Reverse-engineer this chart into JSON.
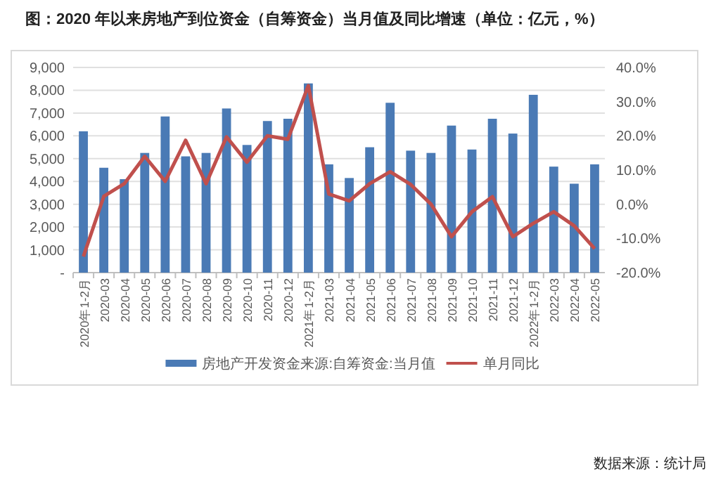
{
  "chart_data": {
    "type": "bar",
    "title": "图：2020 年以来房地产到位资金（自筹资金）当月值及同比增速（单位：亿元，%）",
    "categories": [
      "2020年1-2月",
      "2020-03",
      "2020-04",
      "2020-05",
      "2020-06",
      "2020-07",
      "2020-08",
      "2020-09",
      "2020-10",
      "2020-11",
      "2020-12",
      "2021年1-2月",
      "2021-03",
      "2021-04",
      "2021-05",
      "2021-06",
      "2021-07",
      "2021-08",
      "2021-09",
      "2021-10",
      "2021-11",
      "2021-12",
      "2022年1-2月",
      "2022-03",
      "2022-04",
      "2022-05"
    ],
    "series": [
      {
        "name": "房地产开发资金来源:自筹资金:当月值",
        "color": "#4a7ab5",
        "values": [
          6200,
          4600,
          4100,
          5250,
          6850,
          5100,
          5250,
          7200,
          5600,
          6650,
          6750,
          8300,
          4750,
          4150,
          5500,
          7450,
          5350,
          5250,
          6450,
          5400,
          6750,
          6100,
          7800,
          4650,
          3900,
          4750
        ]
      },
      {
        "name": "单月同比",
        "type": "line",
        "axis": "y2",
        "color": "#c0504d",
        "values": [
          -15.3,
          2.3,
          6,
          14,
          6.7,
          18.7,
          6,
          19.7,
          12.3,
          20,
          19,
          34.7,
          3,
          1,
          6,
          9.5,
          5.8,
          0,
          -9.5,
          -2.2,
          2.2,
          -9.5,
          -5.6,
          -2.2,
          -6.3,
          -13
        ]
      }
    ],
    "ylim": [
      0,
      9000
    ],
    "yticks": [
      {
        "value": 0,
        "label": "-"
      },
      {
        "value": 1000,
        "label": "1,000"
      },
      {
        "value": 2000,
        "label": "2,000"
      },
      {
        "value": 3000,
        "label": "3,000"
      },
      {
        "value": 4000,
        "label": "4,000"
      },
      {
        "value": 5000,
        "label": "5,000"
      },
      {
        "value": 6000,
        "label": "6,000"
      },
      {
        "value": 7000,
        "label": "7,000"
      },
      {
        "value": 8000,
        "label": "8,000"
      },
      {
        "value": 9000,
        "label": "9,000"
      }
    ],
    "y2lim": [
      -20,
      40
    ],
    "y2ticks": [
      {
        "value": -20,
        "label": "-20.0%"
      },
      {
        "value": -10,
        "label": "-10.0%"
      },
      {
        "value": 0,
        "label": "0.0%"
      },
      {
        "value": 10,
        "label": "10.0%"
      },
      {
        "value": 20,
        "label": "20.0%"
      },
      {
        "value": 30,
        "label": "30.0%"
      },
      {
        "value": 40,
        "label": "40.0%"
      }
    ],
    "grid": "y",
    "legend": "bottom",
    "annotations": [
      "数据来源：统计局"
    ]
  }
}
